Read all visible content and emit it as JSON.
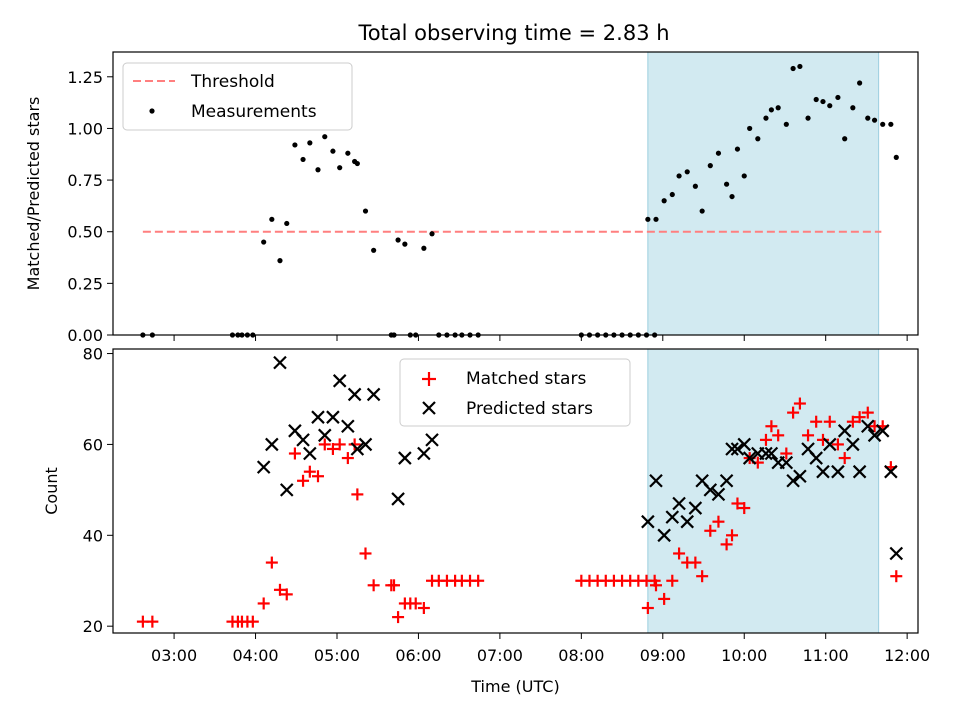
{
  "figure": {
    "title": "Total observing time = 2.83 h"
  },
  "chart_data": [
    {
      "type": "scatter",
      "panel": "top",
      "ylabel": "Matched/Predicted stars",
      "xlabel": "",
      "xlim": [
        "02:15",
        "12:08"
      ],
      "ylim": [
        0,
        1.37
      ],
      "yticks": [
        0.0,
        0.25,
        0.5,
        0.75,
        1.0,
        1.25
      ],
      "ytick_labels": [
        "0.00",
        "0.25",
        "0.50",
        "0.75",
        "1.00",
        "1.25"
      ],
      "xticks": [
        "03:00",
        "04:00",
        "05:00",
        "06:00",
        "07:00",
        "08:00",
        "09:00",
        "10:00",
        "11:00",
        "12:00"
      ],
      "shaded_span": {
        "x0": "08:49",
        "x1": "11:39",
        "color": "#add8e6"
      },
      "legend": {
        "position": "top-left",
        "entries": [
          "Threshold",
          "Measurements"
        ]
      },
      "threshold": {
        "name": "Threshold",
        "y": 0.5,
        "x0": "02:37",
        "x1": "11:41",
        "color": "#ff7f7f",
        "style": "dashed"
      },
      "series": [
        {
          "name": "Measurements",
          "color": "#000000",
          "marker": "dot",
          "points": [
            [
              "02:37",
              0
            ],
            [
              "02:44",
              0
            ],
            [
              "03:43",
              0
            ],
            [
              "03:47",
              0
            ],
            [
              "03:50",
              0
            ],
            [
              "03:54",
              0
            ],
            [
              "03:58",
              0
            ],
            [
              "04:06",
              0.45
            ],
            [
              "04:12",
              0.56
            ],
            [
              "04:18",
              0.36
            ],
            [
              "04:23",
              0.54
            ],
            [
              "04:29",
              0.92
            ],
            [
              "04:35",
              0.85
            ],
            [
              "04:40",
              0.93
            ],
            [
              "04:46",
              0.8
            ],
            [
              "04:51",
              0.96
            ],
            [
              "04:57",
              0.89
            ],
            [
              "05:02",
              0.81
            ],
            [
              "05:08",
              0.88
            ],
            [
              "05:13",
              0.84
            ],
            [
              "05:15",
              0.83
            ],
            [
              "05:21",
              0.6
            ],
            [
              "05:27",
              0.41
            ],
            [
              "05:40",
              0
            ],
            [
              "05:42",
              0
            ],
            [
              "05:45",
              0.46
            ],
            [
              "05:50",
              0.44
            ],
            [
              "05:54",
              0
            ],
            [
              "05:58",
              0
            ],
            [
              "06:04",
              0.42
            ],
            [
              "06:10",
              0.49
            ],
            [
              "06:15",
              0
            ],
            [
              "06:21",
              0
            ],
            [
              "06:27",
              0
            ],
            [
              "06:32",
              0
            ],
            [
              "06:38",
              0
            ],
            [
              "06:44",
              0
            ],
            [
              "08:00",
              0
            ],
            [
              "08:06",
              0
            ],
            [
              "08:12",
              0
            ],
            [
              "08:18",
              0
            ],
            [
              "08:24",
              0
            ],
            [
              "08:30",
              0
            ],
            [
              "08:36",
              0
            ],
            [
              "08:42",
              0
            ],
            [
              "08:48",
              0
            ],
            [
              "08:54",
              0
            ],
            [
              "08:49",
              0.56
            ],
            [
              "08:55",
              0.56
            ],
            [
              "09:01",
              0.65
            ],
            [
              "09:07",
              0.68
            ],
            [
              "09:12",
              0.77
            ],
            [
              "09:18",
              0.79
            ],
            [
              "09:24",
              0.72
            ],
            [
              "09:29",
              0.6
            ],
            [
              "09:35",
              0.82
            ],
            [
              "09:41",
              0.88
            ],
            [
              "09:47",
              0.73
            ],
            [
              "09:51",
              0.67
            ],
            [
              "09:55",
              0.9
            ],
            [
              "10:00",
              0.77
            ],
            [
              "10:04",
              1.0
            ],
            [
              "10:10",
              0.95
            ],
            [
              "10:16",
              1.05
            ],
            [
              "10:20",
              1.09
            ],
            [
              "10:25",
              1.1
            ],
            [
              "10:31",
              1.02
            ],
            [
              "10:36",
              1.29
            ],
            [
              "10:41",
              1.3
            ],
            [
              "10:47",
              1.05
            ],
            [
              "10:53",
              1.14
            ],
            [
              "10:58",
              1.13
            ],
            [
              "11:03",
              1.11
            ],
            [
              "11:09",
              1.15
            ],
            [
              "11:14",
              0.95
            ],
            [
              "11:20",
              1.1
            ],
            [
              "11:25",
              1.22
            ],
            [
              "11:31",
              1.05
            ],
            [
              "11:36",
              1.04
            ],
            [
              "11:42",
              1.02
            ],
            [
              "11:48",
              1.02
            ],
            [
              "11:52",
              0.86
            ]
          ]
        }
      ]
    },
    {
      "type": "scatter",
      "panel": "bottom",
      "xlabel": "Time (UTC)",
      "ylabel": "Count",
      "xlim": [
        "02:15",
        "12:08"
      ],
      "ylim": [
        18.5,
        81
      ],
      "yticks": [
        20,
        40,
        60,
        80
      ],
      "ytick_labels": [
        "20",
        "40",
        "60",
        "80"
      ],
      "xticks": [
        "03:00",
        "04:00",
        "05:00",
        "06:00",
        "07:00",
        "08:00",
        "09:00",
        "10:00",
        "11:00",
        "12:00"
      ],
      "xtick_labels": [
        "03:00",
        "04:00",
        "05:00",
        "06:00",
        "07:00",
        "08:00",
        "09:00",
        "10:00",
        "11:00",
        "12:00"
      ],
      "shaded_span": {
        "x0": "08:49",
        "x1": "11:39",
        "color": "#add8e6"
      },
      "legend": {
        "position": "top-center",
        "entries": [
          "Matched stars",
          "Predicted stars"
        ]
      },
      "series": [
        {
          "name": "Matched stars",
          "color": "#ff0000",
          "marker": "plus",
          "points": [
            [
              "02:37",
              21
            ],
            [
              "02:44",
              21
            ],
            [
              "03:43",
              21
            ],
            [
              "03:47",
              21
            ],
            [
              "03:50",
              21
            ],
            [
              "03:54",
              21
            ],
            [
              "03:58",
              21
            ],
            [
              "04:06",
              25
            ],
            [
              "04:12",
              34
            ],
            [
              "04:18",
              28
            ],
            [
              "04:23",
              27
            ],
            [
              "04:29",
              58
            ],
            [
              "04:35",
              52
            ],
            [
              "04:40",
              54
            ],
            [
              "04:46",
              53
            ],
            [
              "04:51",
              60
            ],
            [
              "04:57",
              59
            ],
            [
              "05:02",
              60
            ],
            [
              "05:08",
              57
            ],
            [
              "05:13",
              60
            ],
            [
              "05:15",
              49
            ],
            [
              "05:21",
              36
            ],
            [
              "05:27",
              29
            ],
            [
              "05:40",
              29
            ],
            [
              "05:42",
              29
            ],
            [
              "05:45",
              22
            ],
            [
              "05:50",
              25
            ],
            [
              "05:54",
              25
            ],
            [
              "05:58",
              25
            ],
            [
              "06:04",
              24
            ],
            [
              "06:10",
              30
            ],
            [
              "06:15",
              30
            ],
            [
              "06:21",
              30
            ],
            [
              "06:27",
              30
            ],
            [
              "06:32",
              30
            ],
            [
              "06:38",
              30
            ],
            [
              "06:44",
              30
            ],
            [
              "08:00",
              30
            ],
            [
              "08:06",
              30
            ],
            [
              "08:12",
              30
            ],
            [
              "08:18",
              30
            ],
            [
              "08:24",
              30
            ],
            [
              "08:30",
              30
            ],
            [
              "08:36",
              30
            ],
            [
              "08:42",
              30
            ],
            [
              "08:48",
              30
            ],
            [
              "08:54",
              30
            ],
            [
              "08:49",
              24
            ],
            [
              "08:55",
              29
            ],
            [
              "09:01",
              26
            ],
            [
              "09:07",
              30
            ],
            [
              "09:12",
              36
            ],
            [
              "09:18",
              34
            ],
            [
              "09:24",
              34
            ],
            [
              "09:29",
              31
            ],
            [
              "09:35",
              41
            ],
            [
              "09:41",
              43
            ],
            [
              "09:47",
              38
            ],
            [
              "09:51",
              40
            ],
            [
              "09:55",
              47
            ],
            [
              "10:00",
              46
            ],
            [
              "10:04",
              57
            ],
            [
              "10:10",
              56
            ],
            [
              "10:16",
              61
            ],
            [
              "10:20",
              64
            ],
            [
              "10:25",
              62
            ],
            [
              "10:31",
              58
            ],
            [
              "10:36",
              67
            ],
            [
              "10:41",
              69
            ],
            [
              "10:47",
              62
            ],
            [
              "10:53",
              65
            ],
            [
              "10:58",
              61
            ],
            [
              "11:03",
              65
            ],
            [
              "11:09",
              60
            ],
            [
              "11:14",
              57
            ],
            [
              "11:20",
              65
            ],
            [
              "11:25",
              66
            ],
            [
              "11:31",
              67
            ],
            [
              "11:36",
              64
            ],
            [
              "11:42",
              64
            ],
            [
              "11:48",
              55
            ],
            [
              "11:52",
              31
            ]
          ]
        },
        {
          "name": "Predicted stars",
          "color": "#000000",
          "marker": "x",
          "points": [
            [
              "04:06",
              55
            ],
            [
              "04:12",
              60
            ],
            [
              "04:18",
              78
            ],
            [
              "04:23",
              50
            ],
            [
              "04:29",
              63
            ],
            [
              "04:35",
              61
            ],
            [
              "04:40",
              58
            ],
            [
              "04:46",
              66
            ],
            [
              "04:51",
              62
            ],
            [
              "04:57",
              66
            ],
            [
              "05:02",
              74
            ],
            [
              "05:08",
              64
            ],
            [
              "05:13",
              71
            ],
            [
              "05:15",
              59
            ],
            [
              "05:21",
              60
            ],
            [
              "05:27",
              71
            ],
            [
              "05:45",
              48
            ],
            [
              "05:50",
              57
            ],
            [
              "06:04",
              58
            ],
            [
              "06:10",
              61
            ],
            [
              "08:49",
              43
            ],
            [
              "08:55",
              52
            ],
            [
              "09:01",
              40
            ],
            [
              "09:07",
              44
            ],
            [
              "09:12",
              47
            ],
            [
              "09:18",
              43
            ],
            [
              "09:24",
              46
            ],
            [
              "09:29",
              52
            ],
            [
              "09:35",
              50
            ],
            [
              "09:41",
              49
            ],
            [
              "09:47",
              52
            ],
            [
              "09:51",
              59
            ],
            [
              "09:55",
              59
            ],
            [
              "10:00",
              60
            ],
            [
              "10:04",
              57
            ],
            [
              "10:10",
              58
            ],
            [
              "10:16",
              58
            ],
            [
              "10:20",
              58
            ],
            [
              "10:25",
              56
            ],
            [
              "10:31",
              56
            ],
            [
              "10:36",
              52
            ],
            [
              "10:41",
              53
            ],
            [
              "10:47",
              59
            ],
            [
              "10:53",
              57
            ],
            [
              "10:58",
              54
            ],
            [
              "11:03",
              60
            ],
            [
              "11:09",
              54
            ],
            [
              "11:14",
              63
            ],
            [
              "11:20",
              60
            ],
            [
              "11:25",
              54
            ],
            [
              "11:31",
              64
            ],
            [
              "11:36",
              62
            ],
            [
              "11:42",
              63
            ],
            [
              "11:48",
              54
            ],
            [
              "11:52",
              36
            ]
          ]
        }
      ]
    }
  ]
}
